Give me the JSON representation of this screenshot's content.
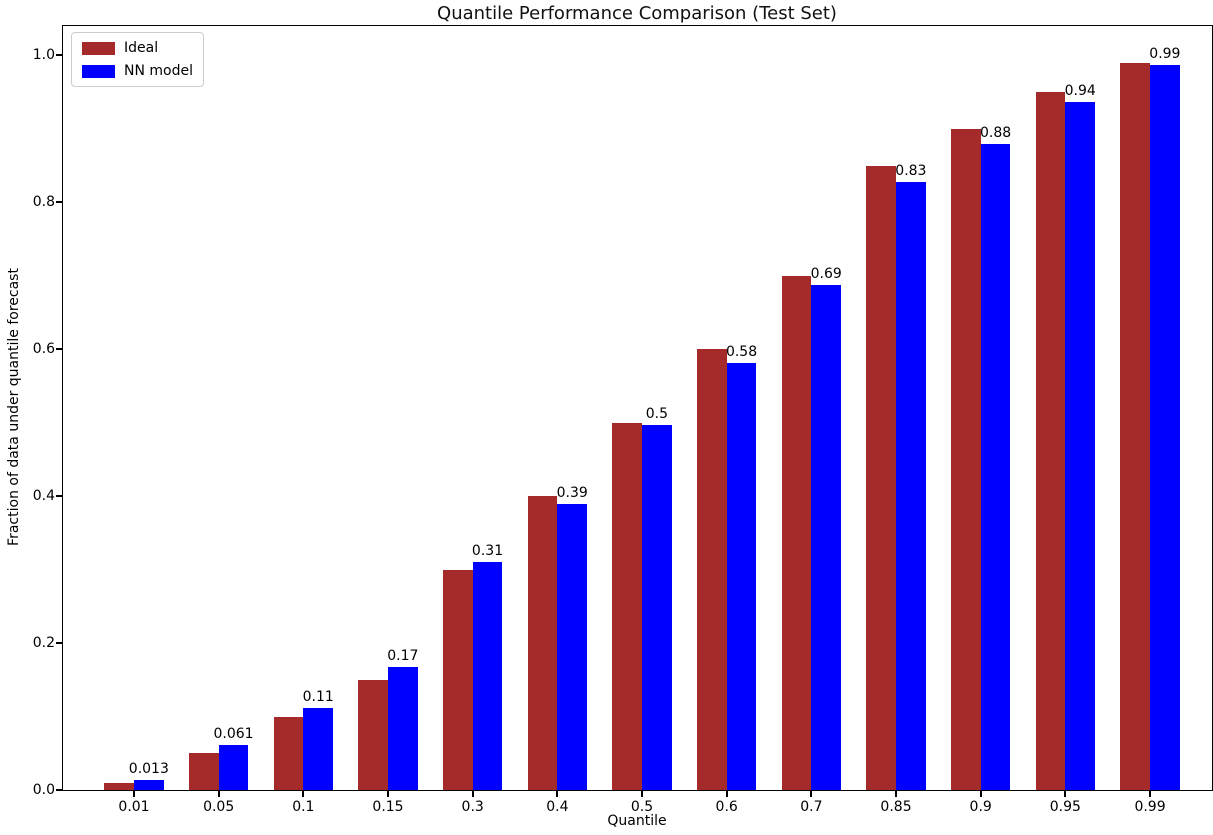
{
  "figure": {
    "title": "Quantile Performance Comparison (Test Set)"
  },
  "chart_data": {
    "type": "bar",
    "title": "Quantile Performance Comparison (Test Set)",
    "xlabel": "Quantile",
    "ylabel": "Fraction of data under quantile forecast",
    "categories": [
      "0.01",
      "0.05",
      "0.1",
      "0.15",
      "0.3",
      "0.4",
      "0.5",
      "0.6",
      "0.7",
      "0.85",
      "0.9",
      "0.95",
      "0.99"
    ],
    "series": [
      {
        "name": "Ideal",
        "color": "#A52A2A",
        "values": [
          0.01,
          0.05,
          0.1,
          0.15,
          0.3,
          0.4,
          0.5,
          0.6,
          0.7,
          0.85,
          0.9,
          0.95,
          0.99
        ]
      },
      {
        "name": "NN model",
        "color": "#0000FF",
        "values": [
          0.013,
          0.061,
          0.11,
          0.17,
          0.31,
          0.39,
          0.5,
          0.58,
          0.69,
          0.83,
          0.88,
          0.94,
          0.99
        ],
        "bar_heights": [
          0.013,
          0.061,
          0.111,
          0.168,
          0.31,
          0.39,
          0.497,
          0.581,
          0.688,
          0.828,
          0.879,
          0.937,
          0.987
        ],
        "value_labels": [
          "0.013",
          "0.061",
          "0.11",
          "0.17",
          "0.31",
          "0.39",
          "0.5",
          "0.58",
          "0.69",
          "0.83",
          "0.88",
          "0.94",
          "0.99"
        ]
      }
    ],
    "yticks": [
      "0.0",
      "0.2",
      "0.4",
      "0.6",
      "0.8",
      "1.0"
    ],
    "ylim": [
      0,
      1.04
    ],
    "grid": false,
    "legend_position": "upper left",
    "legend": [
      "Ideal",
      "NN model"
    ],
    "axis_color": "#000000",
    "background_color": "#ffffff"
  }
}
